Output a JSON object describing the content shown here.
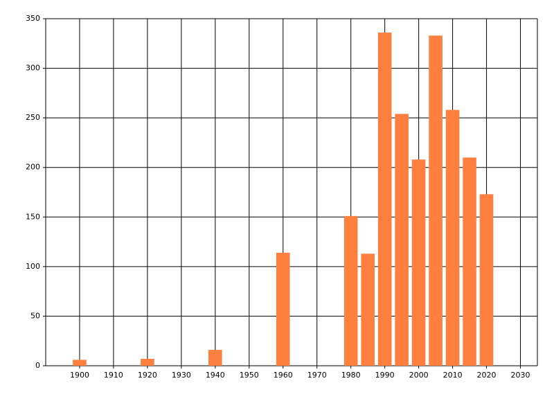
{
  "chart_data": {
    "type": "bar",
    "x": [
      1900,
      1920,
      1940,
      1960,
      1980,
      1985,
      1990,
      1995,
      2000,
      2005,
      2010,
      2015,
      2020
    ],
    "values": [
      6,
      7,
      16,
      114,
      151,
      113,
      336,
      254,
      208,
      333,
      258,
      210,
      173
    ],
    "color": "#ff7f3f",
    "xlim": [
      1890,
      2035
    ],
    "xticks": [
      1900,
      1910,
      1920,
      1930,
      1940,
      1950,
      1960,
      1970,
      1980,
      1990,
      2000,
      2010,
      2020,
      2030
    ],
    "ylim": [
      0,
      350
    ],
    "yticks": [
      0,
      50,
      100,
      150,
      200,
      250,
      300,
      350
    ],
    "grid": true
  }
}
